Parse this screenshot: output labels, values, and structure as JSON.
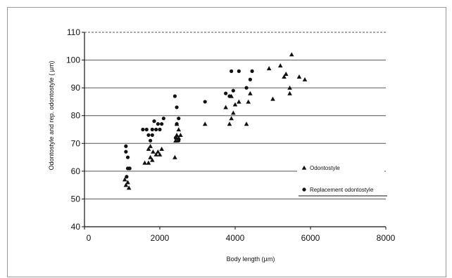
{
  "chart_data": {
    "type": "scatter",
    "title": "",
    "xlabel": "Body length (µm)",
    "ylabel": "Odontostyle and rep. odontostyle ( µm)",
    "xlim": [
      0,
      8000
    ],
    "ylim": [
      40,
      110
    ],
    "xticks": [
      0,
      2000,
      4000,
      6000,
      8000
    ],
    "yticks": [
      40,
      50,
      60,
      70,
      80,
      90,
      100,
      110
    ],
    "grid": "horizontal",
    "legend_position": "right",
    "colors": {
      "marker": "#111111",
      "grid": "#555555",
      "axis": "#111111"
    },
    "series": [
      {
        "name": "Odontostyle",
        "marker": "triangle",
        "points": [
          [
            1070,
            57
          ],
          [
            1100,
            55
          ],
          [
            1150,
            56
          ],
          [
            1180,
            54
          ],
          [
            1600,
            63
          ],
          [
            1700,
            63
          ],
          [
            1750,
            65
          ],
          [
            1800,
            64
          ],
          [
            1820,
            67
          ],
          [
            1900,
            66
          ],
          [
            1950,
            67
          ],
          [
            2000,
            66
          ],
          [
            2050,
            68
          ],
          [
            1700,
            68
          ],
          [
            1750,
            69
          ],
          [
            2400,
            65
          ],
          [
            2420,
            71
          ],
          [
            2450,
            73
          ],
          [
            2500,
            72
          ],
          [
            2550,
            73
          ],
          [
            2500,
            75
          ],
          [
            2450,
            77
          ],
          [
            3200,
            77
          ],
          [
            3750,
            83
          ],
          [
            3850,
            77
          ],
          [
            3900,
            79
          ],
          [
            3950,
            81
          ],
          [
            3900,
            87
          ],
          [
            4000,
            84
          ],
          [
            4100,
            85
          ],
          [
            4300,
            77
          ],
          [
            4350,
            85
          ],
          [
            4400,
            88
          ],
          [
            4900,
            97
          ],
          [
            5000,
            86
          ],
          [
            5200,
            98
          ],
          [
            5300,
            94
          ],
          [
            5350,
            95
          ],
          [
            5450,
            90
          ],
          [
            5450,
            88
          ],
          [
            5500,
            102
          ],
          [
            5700,
            94
          ],
          [
            5850,
            93
          ]
        ]
      },
      {
        "name": "Replacement odontostyle",
        "marker": "circle",
        "points": [
          [
            1100,
            69
          ],
          [
            1100,
            67
          ],
          [
            1150,
            65
          ],
          [
            1150,
            61
          ],
          [
            1200,
            61
          ],
          [
            1120,
            58
          ],
          [
            1550,
            75
          ],
          [
            1650,
            75
          ],
          [
            1700,
            73
          ],
          [
            1750,
            71
          ],
          [
            1800,
            73
          ],
          [
            1850,
            78
          ],
          [
            1900,
            75
          ],
          [
            1950,
            77
          ],
          [
            2000,
            75
          ],
          [
            2050,
            77
          ],
          [
            2100,
            79
          ],
          [
            1800,
            75
          ],
          [
            2400,
            87
          ],
          [
            2450,
            83
          ],
          [
            2500,
            79
          ],
          [
            2450,
            77
          ],
          [
            2500,
            71
          ],
          [
            2420,
            72
          ],
          [
            3200,
            85
          ],
          [
            3750,
            88
          ],
          [
            3850,
            87
          ],
          [
            3900,
            96
          ],
          [
            3950,
            89
          ],
          [
            4100,
            96
          ],
          [
            4300,
            90
          ],
          [
            4400,
            93
          ],
          [
            4450,
            96
          ]
        ]
      }
    ]
  }
}
